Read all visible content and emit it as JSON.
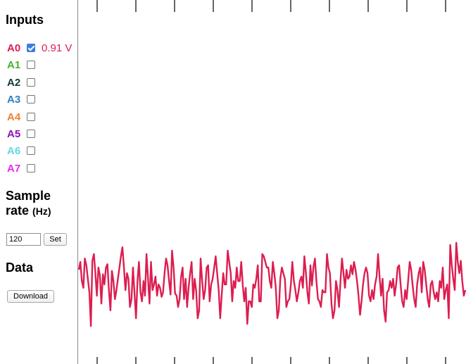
{
  "sidebar": {
    "inputs_title": "Inputs",
    "channels": [
      {
        "label": "A0",
        "color": "#dc1e50",
        "checked": true,
        "value": "0.91 V"
      },
      {
        "label": "A1",
        "color": "#4caf2e",
        "checked": false,
        "value": ""
      },
      {
        "label": "A2",
        "color": "#0e3a3a",
        "checked": false,
        "value": ""
      },
      {
        "label": "A3",
        "color": "#2f7fc1",
        "checked": false,
        "value": ""
      },
      {
        "label": "A4",
        "color": "#f08030",
        "checked": false,
        "value": ""
      },
      {
        "label": "A5",
        "color": "#8b10b8",
        "checked": false,
        "value": ""
      },
      {
        "label": "A6",
        "color": "#5fd8e0",
        "checked": false,
        "value": ""
      },
      {
        "label": "A7",
        "color": "#e62be6",
        "checked": false,
        "value": ""
      }
    ],
    "sample_rate": {
      "title_line1": "Sample",
      "title_line2": "rate",
      "unit": "(Hz)",
      "input_value": "120",
      "set_label": "Set"
    },
    "data": {
      "title": "Data",
      "download_label": "Download"
    }
  },
  "plot": {
    "trace_color": "#dc1e50",
    "axis_color": "#000000",
    "signal": [
      -0.02,
      0.05,
      -0.12,
      -0.18,
      0.08,
      0.02,
      -0.1,
      -0.22,
      -0.52,
      0.06,
      0.12,
      -0.05,
      -0.25,
      0.0,
      -0.07,
      -0.32,
      -0.06,
      -0.15,
      0.0,
      0.03,
      -0.2,
      -0.38,
      -0.03,
      -0.12,
      -0.28,
      -0.2,
      -0.1,
      0.0,
      0.1,
      0.18,
      0.0,
      -0.2,
      -0.05,
      -0.1,
      -0.35,
      -0.28,
      0.0,
      -0.22,
      -0.45,
      -0.12,
      0.05,
      -0.22,
      -0.3,
      -0.12,
      -0.25,
      0.12,
      -0.1,
      -0.32,
      0.05,
      -0.2,
      -0.15,
      -0.08,
      -0.25,
      -0.15,
      -0.18,
      -0.26,
      -0.22,
      -0.05,
      0.08,
      0.02,
      -0.12,
      -0.24,
      0.15,
      0.0,
      -0.23,
      -0.25,
      -0.35,
      -0.28,
      -0.08,
      0.0,
      -0.28,
      -0.1,
      -0.35,
      -0.18,
      -0.05,
      0.05,
      -0.28,
      -0.1,
      -0.2,
      -0.45,
      -0.38,
      0.08,
      -0.12,
      -0.28,
      -0.2,
      0.0,
      0.02,
      -0.3,
      -0.15,
      -0.1,
      0.0,
      0.1,
      -0.05,
      -0.2,
      -0.45,
      -0.25,
      -0.05,
      -0.15,
      -0.15,
      0.15,
      0.05,
      -0.05,
      -0.3,
      -0.12,
      -0.18,
      0.0,
      -0.12,
      -0.12,
      0.05,
      -0.15,
      -0.3,
      -0.18,
      -0.5,
      -0.3,
      -0.3,
      -0.35,
      -0.15,
      -0.18,
      -0.1,
      0.02,
      -0.3,
      -0.3,
      0.12,
      0.1,
      0.05,
      0.0,
      0.0,
      -0.12,
      -0.18,
      0.05,
      -0.05,
      -0.18,
      -0.45,
      -0.38,
      -0.1,
      0.0,
      -0.05,
      -0.1,
      -0.35,
      -0.3,
      -0.28,
      -0.15,
      0.05,
      -0.12,
      -0.2,
      -0.3,
      -0.22,
      -0.12,
      -0.08,
      -0.18,
      0.1,
      -0.05,
      -0.22,
      -0.32,
      0.02,
      -0.16,
      0.0,
      0.08,
      -0.12,
      -0.28,
      -0.3,
      -0.35,
      -0.2,
      -0.22,
      -0.22,
      0.12,
      0.0,
      -0.05,
      -0.32,
      -0.45,
      -0.38,
      -0.12,
      -0.2,
      -0.35,
      -0.12,
      0.08,
      -0.05,
      -0.18,
      -0.02,
      -0.1,
      -0.08,
      0.02,
      -0.06,
      0.05,
      -0.02,
      -0.12,
      -0.25,
      -0.42,
      -0.3,
      -0.15,
      -0.05,
      0.0,
      -0.05,
      -0.25,
      -0.3,
      -0.2,
      -0.28,
      -0.15,
      -0.08,
      0.12,
      -0.08,
      -0.25,
      -0.1,
      -0.38,
      -0.48,
      -0.22,
      -0.2,
      -0.12,
      -0.18,
      -0.1,
      -0.25,
      -0.15,
      0.0,
      0.02,
      -0.15,
      -0.3,
      -0.35,
      -0.2,
      -0.28,
      -0.12,
      0.05,
      -0.02,
      -0.16,
      -0.28,
      -0.35,
      -0.15,
      -0.05,
      0.0,
      -0.22,
      0.05,
      -0.02,
      -0.15,
      -0.28,
      -0.35,
      -0.15,
      -0.12,
      -0.22,
      -0.28,
      -0.22,
      -0.3,
      -0.12,
      -0.18,
      0.0,
      -0.28,
      -0.2,
      -0.15,
      -0.45,
      0.2,
      0.02,
      -0.1,
      -0.2,
      0.22,
      0.05,
      -0.05,
      0.06,
      -0.12,
      -0.25,
      -0.2
    ]
  }
}
